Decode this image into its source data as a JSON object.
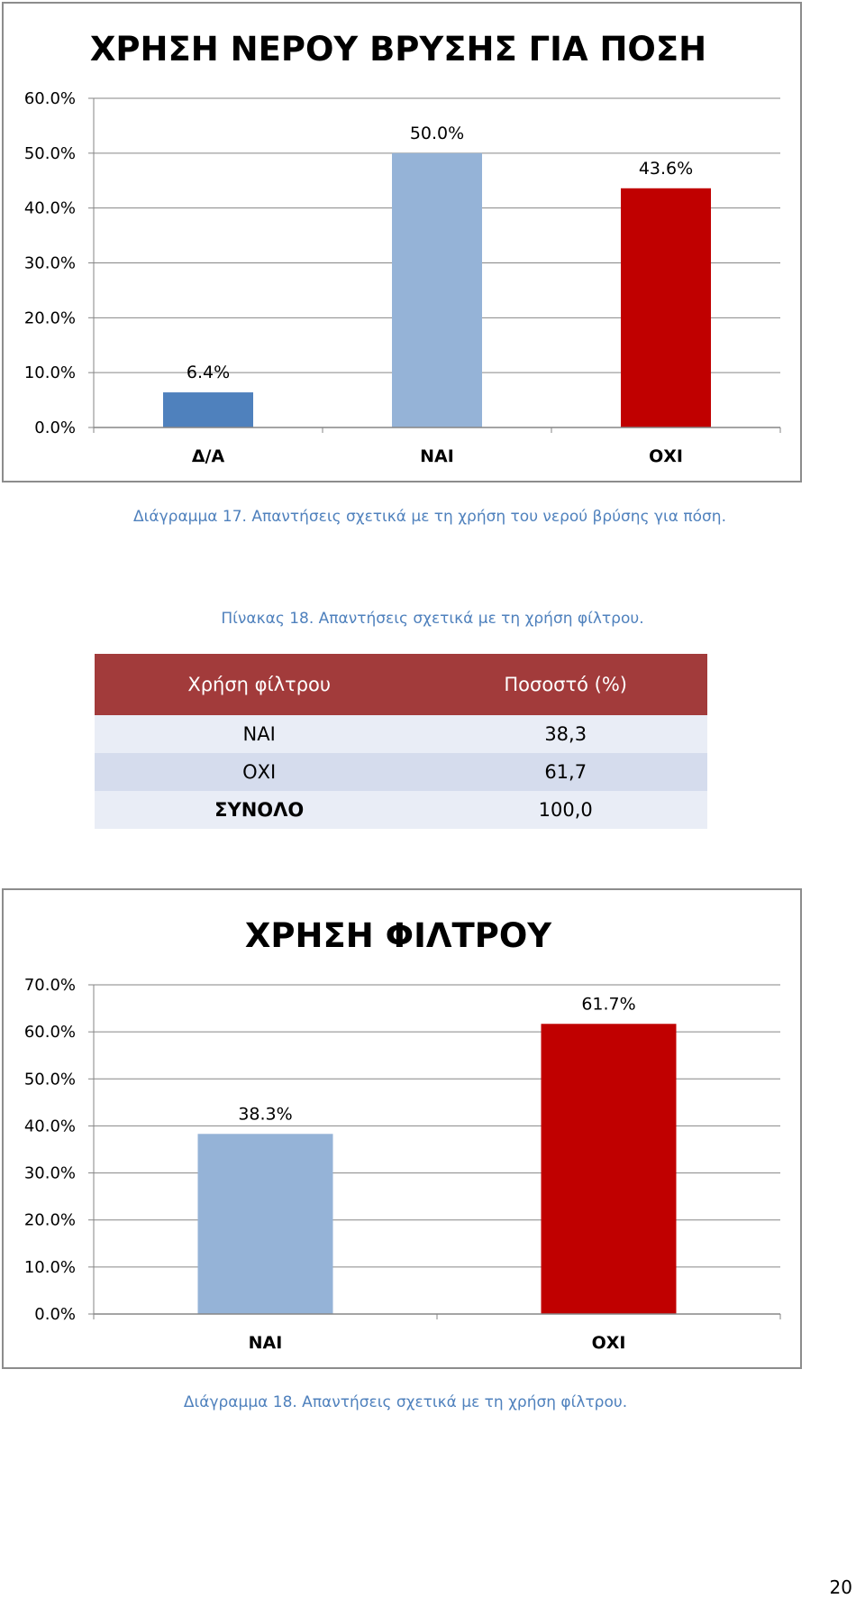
{
  "chart_data": [
    {
      "type": "bar",
      "title": "ΧΡΗΣΗ ΝΕΡΟΥ ΒΡΥΣΗΣ ΓΙΑ ΠΟΣΗ",
      "categories": [
        "Δ/Α",
        "ΝΑΙ",
        "ΟΧΙ"
      ],
      "values": [
        6.4,
        50.0,
        43.6
      ],
      "data_labels": [
        "6.4%",
        "50.0%",
        "43.6%"
      ],
      "colors": [
        "#4f81bd",
        "#95b3d7",
        "#c00000"
      ],
      "yticks": [
        "0.0%",
        "10.0%",
        "20.0%",
        "30.0%",
        "40.0%",
        "50.0%",
        "60.0%"
      ],
      "ylim": [
        0,
        60
      ],
      "grid": true,
      "xlabel": "",
      "ylabel": ""
    },
    {
      "type": "bar",
      "title": "ΧΡΗΣΗ ΦΙΛΤΡΟΥ",
      "categories": [
        "ΝΑΙ",
        "ΟΧΙ"
      ],
      "values": [
        38.3,
        61.7
      ],
      "data_labels": [
        "38.3%",
        "61.7%"
      ],
      "colors": [
        "#95b3d7",
        "#c00000"
      ],
      "yticks": [
        "0.0%",
        "10.0%",
        "20.0%",
        "30.0%",
        "40.0%",
        "50.0%",
        "60.0%",
        "70.0%"
      ],
      "ylim": [
        0,
        70
      ],
      "grid": true,
      "xlabel": "",
      "ylabel": ""
    }
  ],
  "captions": {
    "chart17": "Διάγραμμα 17. Απαντήσεις σχετικά με τη χρήση του νερού βρύσης για πόση.",
    "table18": "Πίνακας 18. Απαντήσεις σχετικά με τη χρήση φίλτρου.",
    "chart18": "Διάγραμμα 18. Απαντήσεις σχετικά με τη χρήση φίλτρου."
  },
  "table": {
    "headers": [
      "Χρήση φίλτρου",
      "Ποσοστό (%)"
    ],
    "rows": [
      [
        "ΝΑΙ",
        "38,3"
      ],
      [
        "ΟΧΙ",
        "61,7"
      ],
      [
        "ΣΥΝΟΛΟ",
        "100,0"
      ]
    ],
    "header_color": "#a23b3b"
  },
  "page_number": "20"
}
